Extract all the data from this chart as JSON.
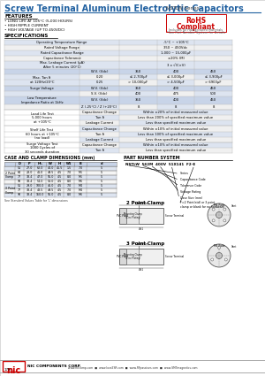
{
  "title_main": "Screw Terminal Aluminum Electrolytic Capacitors",
  "title_series": "NSTLW Series",
  "title_color": "#2b6cb0",
  "features_title": "FEATURES",
  "features": [
    "• LONG LIFE AT 105°C (5,000 HOURS)",
    "• HIGH RIPPLE CURRENT",
    "• HIGH VOLTAGE (UP TO 450VDC)"
  ],
  "rohs_line1": "RoHS",
  "rohs_line2": "Compliant",
  "rohs_sub": "Includes all Halogenated Materials",
  "rohs_note": "*See Part Number System for Details",
  "specs_title": "SPECIFICATIONS",
  "simple_specs": [
    [
      "Operating Temperature Range",
      "-5°C ~ +105°C"
    ],
    [
      "Rated Voltage Range",
      "350 ~ 450Vdc"
    ],
    [
      "Rated Capacitance Range",
      "1,000 ~ 15,000µF"
    ],
    [
      "Capacitance Tolerance",
      "±20% (M)"
    ],
    [
      "Max. Leakage Current (µA)\nAfter 5 minutes (20°C)",
      "3 x √(C×V)"
    ]
  ],
  "tan_header": [
    "",
    "W.V. (Vdc)",
    "350",
    "400",
    "450"
  ],
  "tan_rows": [
    [
      "Max. Tan δ\nat 120Hz/20°C",
      "0.20",
      "≤ 2,700µF",
      "≤ 3,000µF",
      "≤ 3,900µF"
    ],
    [
      "",
      "0.25",
      "> 10,000µF",
      "> 4,500µF",
      "> 6900µF"
    ]
  ],
  "surge_header": [
    "Surge Voltage",
    "W.V. (Vdc)",
    "350",
    "400",
    "450"
  ],
  "surge_rows": [
    [
      "",
      "S.V. (Vdc)",
      "400",
      "475",
      "500"
    ]
  ],
  "imp_header": [
    "Low Temperature\nImpedance Ratio at 1kHz",
    "W.V. (Vdc)",
    "350",
    "400",
    "450"
  ],
  "imp_rows": [
    [
      "",
      "Z (-25°C) / Z (+20°C)",
      "8",
      "8",
      "8"
    ]
  ],
  "endurance_rows": [
    [
      "Load Life Test\n5,000 hours at +105°C",
      "Capacitance Change",
      "Within ±20% of initial measured value"
    ],
    [
      "",
      "Tan δ",
      "Less than 200% of specified maximum value"
    ],
    [
      "",
      "Leakage Current",
      "Less than specified maximum value"
    ],
    [
      "Shelf Life Test\n60 hours at +105°C\n(no load)",
      "Capacitance Change",
      "Within ±10% of initial measured value"
    ],
    [
      "",
      "Tan δ",
      "Less than 100% of specified maximum value"
    ],
    [
      "",
      "Leakage Current",
      "Less than specified maximum value"
    ],
    [
      "Surge Voltage Test\n1000 Cycles of 30 seconds duration",
      "Capacitance Change",
      "Within ±10% of initial measured value"
    ],
    [
      "",
      "Tan δ",
      "Less than specified maximum value"
    ]
  ],
  "case_title": "CASE AND CLAMP DIMENSIONS (mm)",
  "case_headers": [
    "D",
    "P",
    "Ht.",
    "W",
    "H",
    "W1",
    "B",
    "d"
  ],
  "case_2pt": [
    [
      "51",
      "27.0",
      "62.0",
      "40.0",
      "45.5",
      "1.5",
      "7.0",
      "-5"
    ],
    [
      "64",
      "28.0",
      "41.0",
      "49.5",
      "4.5",
      "7.0",
      "M5",
      "-5"
    ],
    [
      "77",
      "33.4",
      "47.0",
      "55.0",
      "4.5",
      "8.0",
      "M5",
      "-5"
    ],
    [
      "90",
      "33.4",
      "54.0",
      "53.0",
      "4.5",
      "8.0",
      "M6",
      "-5"
    ]
  ],
  "case_3pt": [
    [
      "51",
      "29.0",
      "100.0",
      "46.0",
      "4.5",
      "7.0",
      "M4",
      "-5"
    ],
    [
      "77",
      "33.4",
      "43.5",
      "49.5",
      "4.5",
      "7.0",
      "M4",
      "-5"
    ],
    [
      "90",
      "33.4",
      "150.0",
      "55.0",
      "4.5",
      "8.0",
      "M6",
      "-5"
    ]
  ],
  "pn_title": "PART NUMBER SYSTEM",
  "pn_example": "NSTLW  5 6 2 M  4 0 0 V  5 1 X 1 4 1  F 2 - E",
  "pn_labels": [
    [
      "Series",
      0
    ],
    [
      "Capacitance Code",
      1
    ],
    [
      "Tolerance Code",
      2
    ],
    [
      "Voltage Rating",
      3
    ],
    [
      "Case Size (mm)",
      4
    ],
    [
      "F=2 Point (std) or 3 point clamp)\nor blank for no hardware",
      5
    ]
  ],
  "footer_company": "NIC COMPONENTS CORP.",
  "footer_web": "www.niccomp.com  ■  www.loveESR.com  ■  www.RFpassives.com  ■  www.SMTmagnetics.com",
  "page_num": "178",
  "bg": "#ffffff",
  "blue": "#2060a0",
  "gray_bg": "#e8e8e8",
  "light_blue_bg": "#dde4f0",
  "mid_blue_bg": "#c8d4e8"
}
